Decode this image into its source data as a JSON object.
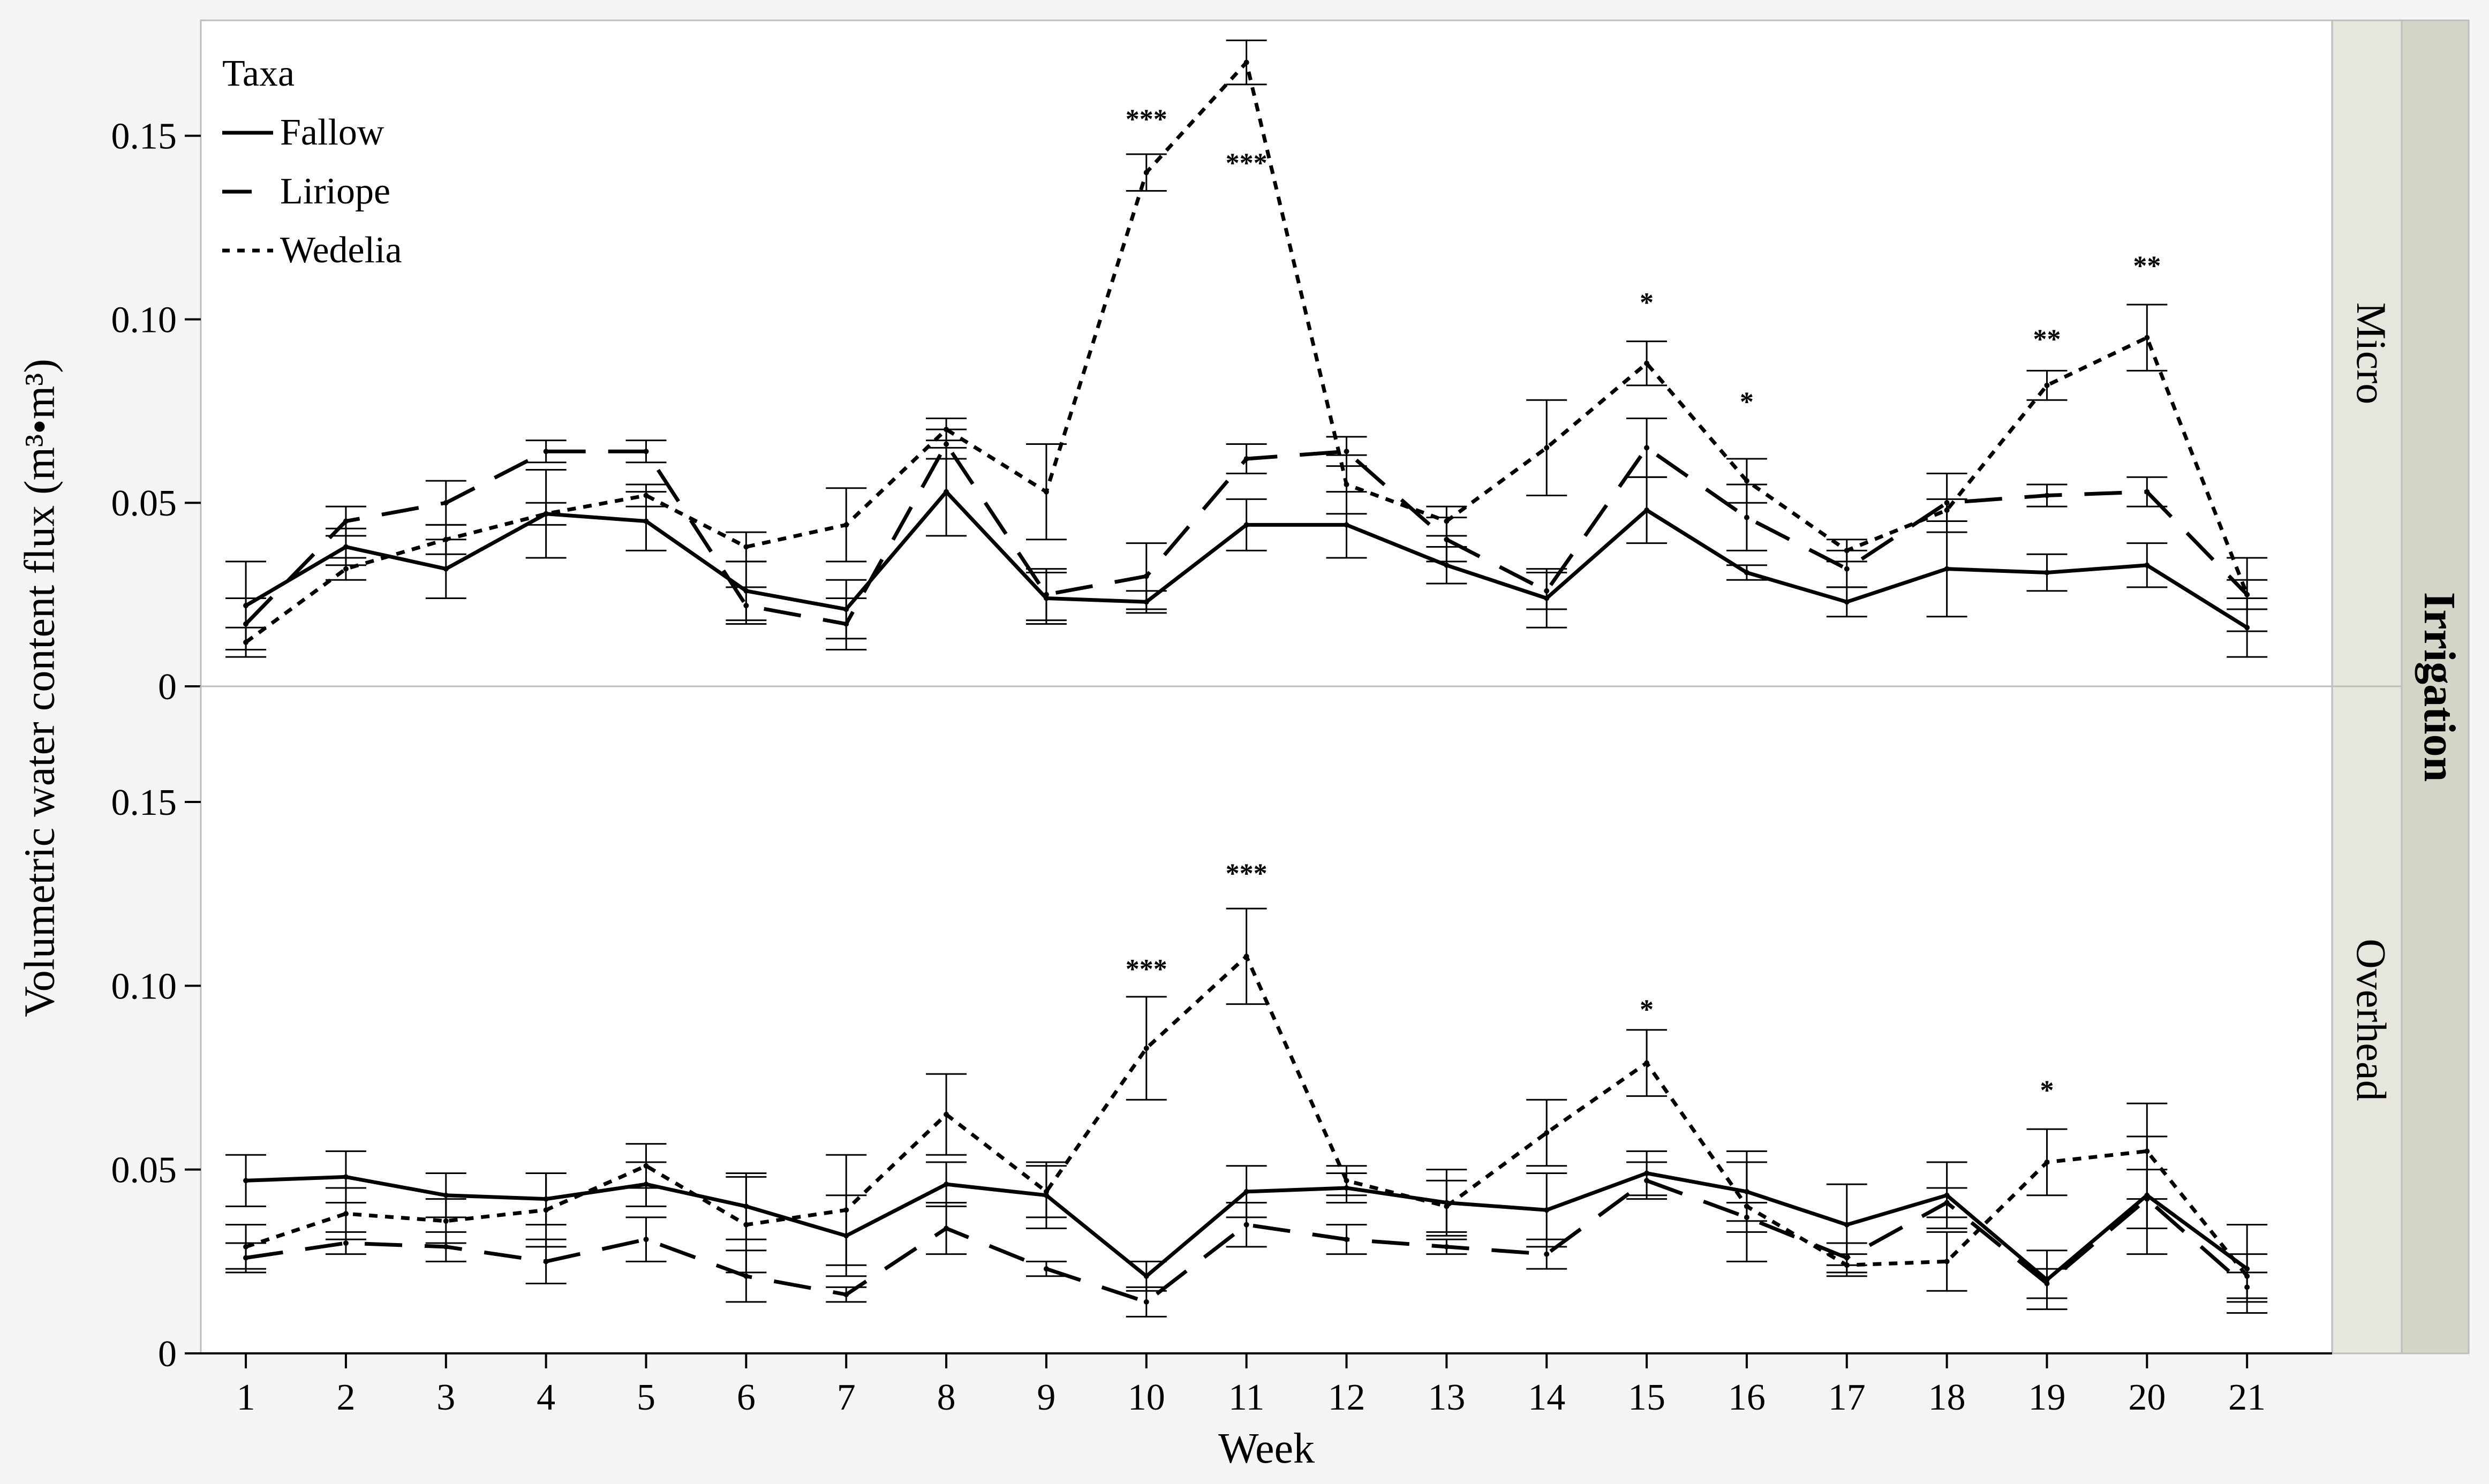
{
  "chart_data": {
    "type": "line",
    "ylabel": "Volumetric water content flux (m³•m³)",
    "xlabel": "Week",
    "x": [
      1,
      2,
      3,
      4,
      5,
      6,
      7,
      8,
      9,
      10,
      11,
      12,
      13,
      14,
      15,
      16,
      17,
      18,
      19,
      20,
      21
    ],
    "x_tick_labels": [
      "1",
      "2",
      "3",
      "4",
      "5",
      "6",
      "7",
      "8",
      "9",
      "10",
      "11",
      "12",
      "13",
      "14",
      "15",
      "16",
      "17",
      "18",
      "19",
      "20",
      "21"
    ],
    "ylim": [
      0,
      0.18
    ],
    "y_ticks": [
      0,
      0.05,
      0.1,
      0.15
    ],
    "y_tick_labels": [
      "0",
      "0.05",
      "0.10",
      "0.15"
    ],
    "facet_group_label": "Irrigation",
    "legend": {
      "title": "Taxa",
      "position": "top-left",
      "entries": [
        "Fallow",
        "Liriope",
        "Wedelia"
      ]
    },
    "panels": [
      {
        "name": "Micro",
        "series": [
          {
            "name": "Fallow",
            "style": "solid",
            "values": [
              0.022,
              0.038,
              0.032,
              0.047,
              0.045,
              0.026,
              0.021,
              0.053,
              0.024,
              0.023,
              0.044,
              0.044,
              0.033,
              0.024,
              0.048,
              0.031,
              0.023,
              0.032,
              0.031,
              0.033,
              0.016
            ],
            "errors": [
              0.012,
              0.005,
              0.008,
              0.012,
              0.008,
              0.008,
              0.008,
              0.012,
              0.007,
              0.003,
              0.007,
              0.009,
              0.005,
              0.008,
              0.009,
              0.002,
              0.004,
              0.013,
              0.005,
              0.006,
              0.008
            ]
          },
          {
            "name": "Liriope",
            "style": "dashed",
            "values": [
              0.017,
              0.045,
              0.05,
              0.064,
              0.064,
              0.022,
              0.017,
              0.066,
              0.025,
              0.03,
              0.062,
              0.064,
              0.04,
              0.026,
              0.065,
              0.046,
              0.032,
              0.05,
              0.052,
              0.053,
              0.025
            ],
            "errors": [
              0.007,
              0.004,
              0.006,
              0.003,
              0.003,
              0.005,
              0.007,
              0.004,
              0.007,
              0.009,
              0.004,
              0.004,
              0.006,
              0.005,
              0.008,
              0.009,
              0.005,
              0.008,
              0.003,
              0.004,
              0.01
            ]
          },
          {
            "name": "Wedelia",
            "style": "dotted",
            "values": [
              0.012,
              0.032,
              0.04,
              0.047,
              0.052,
              0.038,
              0.044,
              0.07,
              0.053,
              0.14,
              0.17,
              0.055,
              0.045,
              0.065,
              0.088,
              0.056,
              0.037,
              0.048,
              0.082,
              0.095,
              0.025
            ],
            "errors": [
              0.004,
              0.003,
              0.004,
              0.003,
              0.003,
              0.004,
              0.01,
              0.003,
              0.013,
              0.005,
              0.006,
              0.008,
              0.004,
              0.013,
              0.006,
              0.006,
              0.003,
              0.003,
              0.004,
              0.009,
              0.004
            ]
          }
        ],
        "significance": [
          {
            "week": 10,
            "label": "***",
            "value": 0.155
          },
          {
            "week": 11,
            "label": "***",
            "value": 0.143
          },
          {
            "week": 15,
            "label": "*",
            "value": 0.105
          },
          {
            "week": 16,
            "label": "*",
            "value": 0.078
          },
          {
            "week": 19,
            "label": "**",
            "value": 0.095
          },
          {
            "week": 20,
            "label": "**",
            "value": 0.115
          }
        ]
      },
      {
        "name": "Overhead",
        "series": [
          {
            "name": "Fallow",
            "style": "solid",
            "values": [
              0.047,
              0.048,
              0.043,
              0.042,
              0.046,
              0.04,
              0.032,
              0.046,
              0.043,
              0.021,
              0.044,
              0.045,
              0.041,
              0.039,
              0.049,
              0.044,
              0.035,
              0.043,
              0.02,
              0.043,
              0.023
            ],
            "errors": [
              0.007,
              0.007,
              0.006,
              0.007,
              0.006,
              0.009,
              0.011,
              0.006,
              0.009,
              0.004,
              0.007,
              0.004,
              0.009,
              0.01,
              0.006,
              0.008,
              0.011,
              0.009,
              0.008,
              0.016,
              0.012
            ]
          },
          {
            "name": "Liriope",
            "style": "dashed",
            "values": [
              0.026,
              0.03,
              0.029,
              0.025,
              0.031,
              0.021,
              0.016,
              0.034,
              0.023,
              0.014,
              0.035,
              0.031,
              0.029,
              0.027,
              0.047,
              0.037,
              0.026,
              0.041,
              0.019,
              0.042,
              0.018
            ],
            "errors": [
              0.004,
              0.003,
              0.004,
              0.006,
              0.006,
              0.007,
              0.002,
              0.007,
              0.002,
              0.004,
              0.006,
              0.004,
              0.002,
              0.004,
              0.005,
              0.004,
              0.004,
              0.004,
              0.004,
              0.008,
              0.004
            ]
          },
          {
            "name": "Wedelia",
            "style": "dotted",
            "values": [
              0.029,
              0.038,
              0.036,
              0.039,
              0.051,
              0.035,
              0.039,
              0.065,
              0.044,
              0.083,
              0.108,
              0.047,
              0.04,
              0.06,
              0.079,
              0.04,
              0.024,
              0.025,
              0.052,
              0.055,
              0.021
            ],
            "errors": [
              0.006,
              0.007,
              0.006,
              0.01,
              0.006,
              0.013,
              0.015,
              0.011,
              0.007,
              0.014,
              0.013,
              0.004,
              0.007,
              0.009,
              0.009,
              0.015,
              0.003,
              0.008,
              0.009,
              0.013,
              0.006
            ]
          }
        ],
        "significance": [
          {
            "week": 10,
            "label": "***",
            "value": 0.105
          },
          {
            "week": 11,
            "label": "***",
            "value": 0.131
          },
          {
            "week": 15,
            "label": "*",
            "value": 0.094
          },
          {
            "week": 19,
            "label": "*",
            "value": 0.072
          }
        ]
      }
    ]
  }
}
